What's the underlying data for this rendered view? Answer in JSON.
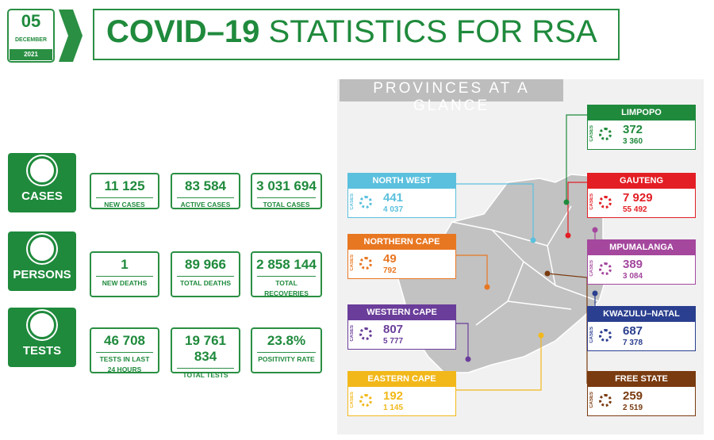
{
  "date": {
    "day": "05",
    "month": "DECEMBER",
    "year": "2021"
  },
  "title": {
    "main": "COVID–19",
    "rest": "STATISTICS FOR RSA"
  },
  "sections": [
    {
      "label": "CASES",
      "stats": [
        {
          "value": "11 125",
          "label": "NEW CASES"
        },
        {
          "value": "83 584",
          "label": "ACTIVE CASES"
        },
        {
          "value": "3 031 694",
          "label": "TOTAL CASES"
        }
      ]
    },
    {
      "label": "PERSONS",
      "stats": [
        {
          "value": "1",
          "label": "NEW DEATHS"
        },
        {
          "value": "89 966",
          "label": "TOTAL DEATHS"
        },
        {
          "value": "2 858 144",
          "label": "TOTAL RECOVERIES"
        }
      ]
    },
    {
      "label": "TESTS",
      "stats": [
        {
          "value": "46 708",
          "label": "TESTS IN LAST 24 HOURS"
        },
        {
          "value": "19 761 834",
          "label": "TOTAL TESTS"
        },
        {
          "value": "23.8%",
          "label": "POSITIVITY RATE"
        }
      ]
    }
  ],
  "provinces_heading": "PROVINCES AT A GLANCE",
  "provinces": [
    {
      "name": "NORTH WEST",
      "side_label": "CASES",
      "main": "441",
      "sub": "4 037"
    },
    {
      "name": "NORTHERN CAPE",
      "side_label": "CASES",
      "main": "49",
      "sub": "792"
    },
    {
      "name": "WESTERN CAPE",
      "side_label": "CASES",
      "main": "807",
      "sub": "5 777"
    },
    {
      "name": "EASTERN CAPE",
      "side_label": "CASES",
      "main": "192",
      "sub": "1 145"
    },
    {
      "name": "LIMPOPO",
      "side_label": "CASES",
      "main": "372",
      "sub": "3 360"
    },
    {
      "name": "GAUTENG",
      "side_label": "CASES",
      "main": "7 929",
      "sub": "55 492"
    },
    {
      "name": "MPUMALANGA",
      "side_label": "CASES",
      "main": "389",
      "sub": "3 084"
    },
    {
      "name": "KWAZULU–NATAL",
      "side_label": "CASES",
      "main": "687",
      "sub": "7 378"
    },
    {
      "name": "FREE STATE",
      "side_label": "CASES",
      "main": "259",
      "sub": "2 519"
    }
  ]
}
